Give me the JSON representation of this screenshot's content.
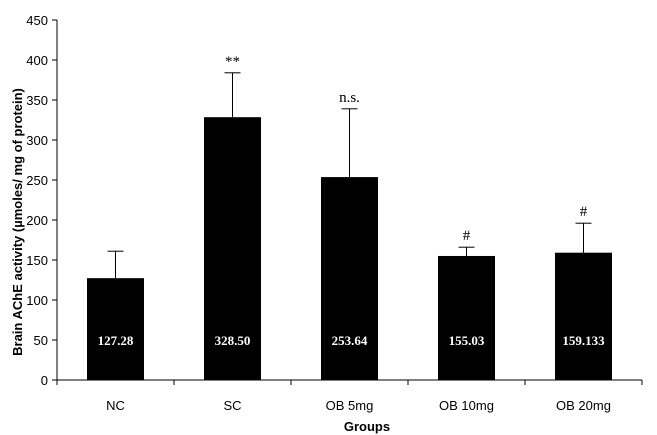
{
  "chart_data": {
    "type": "bar",
    "title": "",
    "xlabel": "Groups",
    "ylabel": "Brain AChE activity (µmoles/ mg of protein)",
    "ylim": [
      0,
      450
    ],
    "yticks": [
      0,
      50,
      100,
      150,
      200,
      250,
      300,
      350,
      400,
      450
    ],
    "categories": [
      "NC",
      "SC",
      "OB 5mg",
      "OB 10mg",
      "OB 20mg"
    ],
    "values": [
      127.28,
      328.5,
      253.64,
      155.03,
      159.133
    ],
    "data_labels": [
      "127.28",
      "328.50",
      "253.64",
      "155.03",
      "159.133"
    ],
    "error_upper": [
      161,
      384,
      339,
      166,
      196
    ],
    "annotations": [
      "",
      "**",
      "n.s.",
      "#",
      "#"
    ],
    "bar_color": "#000000",
    "grid": false,
    "legend": "none"
  }
}
